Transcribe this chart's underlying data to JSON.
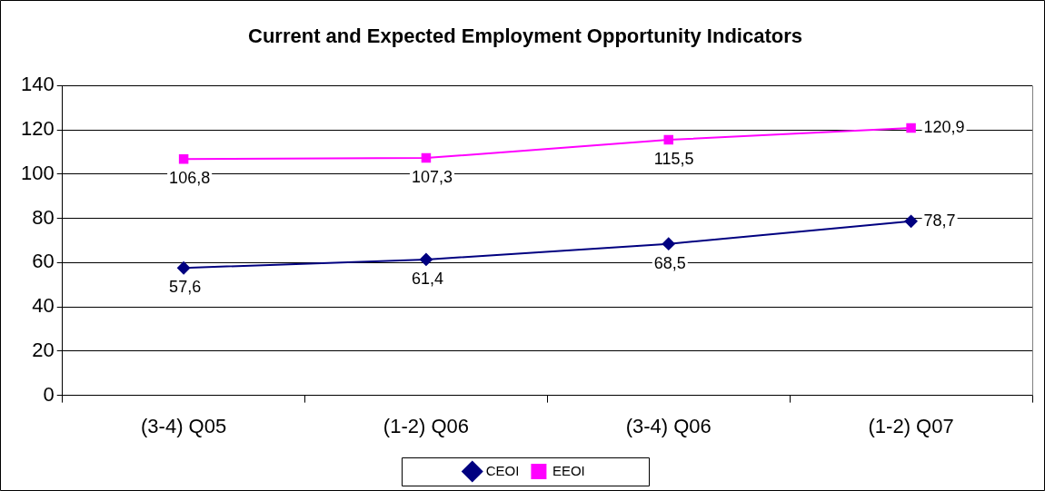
{
  "chart_data": {
    "type": "line",
    "title": "Current and Expected Employment Opportunity Indicators",
    "categories": [
      "(3-4) Q05",
      "(1-2) Q06",
      "(3-4) Q06",
      "(1-2) Q07"
    ],
    "series": [
      {
        "name": "CEOI",
        "color": "#000080",
        "marker": "diamond",
        "values": [
          57.6,
          61.4,
          68.5,
          78.7
        ],
        "value_labels": [
          "57,6",
          "61,4",
          "68,5",
          "78,7"
        ]
      },
      {
        "name": "EEOI",
        "color": "#ff00ff",
        "marker": "square",
        "values": [
          106.8,
          107.3,
          115.5,
          120.9
        ],
        "value_labels": [
          "106,8",
          "107,3",
          "115,5",
          "120,9"
        ]
      }
    ],
    "ylim": [
      0,
      140
    ],
    "yticks": [
      0,
      20,
      40,
      60,
      80,
      100,
      120,
      140
    ],
    "grid": "y",
    "legend": "bottom"
  }
}
